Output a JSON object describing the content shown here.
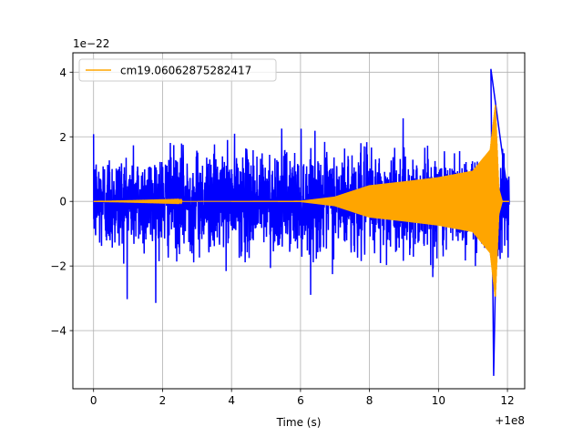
{
  "chart_data": {
    "type": "line",
    "title": "",
    "xlabel": "Time (s)",
    "ylabel": "",
    "x_offset_label": "+1e8",
    "y_scale_label": "1e−22",
    "xlim": [
      -0.6,
      12.5
    ],
    "ylim": [
      -5.8,
      4.6
    ],
    "grid": true,
    "legend_position": "upper-left",
    "x_ticks": [
      0,
      2,
      4,
      6,
      8,
      10,
      12
    ],
    "x_tick_labels": [
      "0",
      "2",
      "4",
      "6",
      "8",
      "10",
      "12"
    ],
    "y_ticks": [
      -4,
      -2,
      0,
      2,
      4
    ],
    "y_tick_labels": [
      "−4",
      "−2",
      "0",
      "2",
      "4"
    ],
    "series": [
      {
        "name": "",
        "color": "#0000ff",
        "description_of_values": "noisy strain data",
        "x_range": [
          0,
          12.05
        ],
        "noise_std": 0.75,
        "peak_positive": 4.1,
        "peak_negative": -5.4
      },
      {
        "name": "cm19.06062875282417",
        "color": "#ffa500",
        "x_range": [
          0,
          12.05
        ],
        "merger_time": 11.65,
        "envelope": [
          {
            "x": 0.0,
            "amp": 0.0
          },
          {
            "x": 6.0,
            "amp": 0.02
          },
          {
            "x": 7.0,
            "amp": 0.15
          },
          {
            "x": 8.0,
            "amp": 0.5
          },
          {
            "x": 9.0,
            "amp": 0.62
          },
          {
            "x": 10.0,
            "amp": 0.75
          },
          {
            "x": 11.0,
            "amp": 0.95
          },
          {
            "x": 11.5,
            "amp": 1.6
          },
          {
            "x": 11.65,
            "amp": 3.0
          },
          {
            "x": 11.75,
            "amp": 0.4
          },
          {
            "x": 11.85,
            "amp": 0.0
          },
          {
            "x": 12.05,
            "amp": 0.0
          }
        ]
      }
    ]
  }
}
